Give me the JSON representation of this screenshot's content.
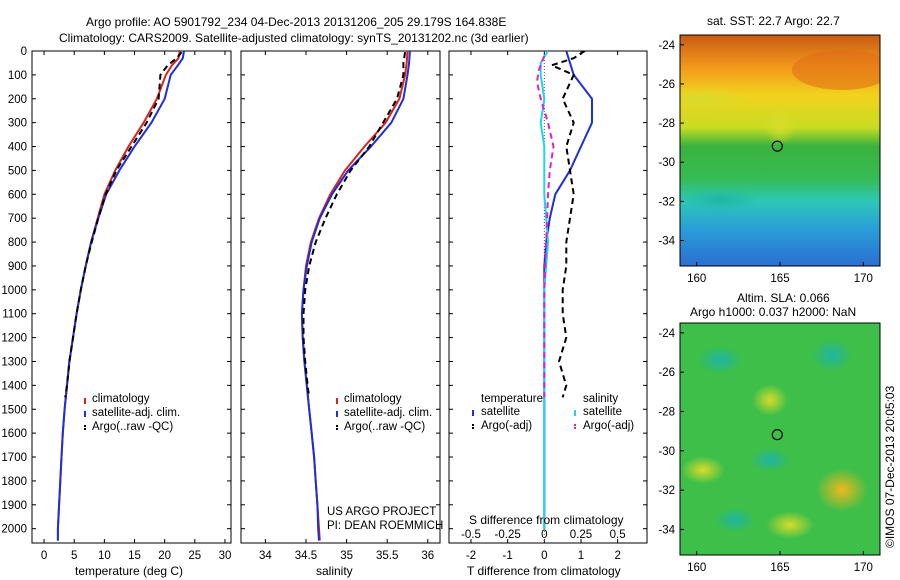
{
  "title_line1": "Argo profile: AO 5901792_234 04-Dec-2013 20131206_205 29.179S 164.838E",
  "title_line2": "Climatology: CARS2009. Satellite-adjusted climatology: synTS_20131202.nc (3d earlier)",
  "colors": {
    "climatology": "#e0201c",
    "satellite": "#1c2fd8",
    "argo": "#000000",
    "salinity_satellite": "#22d4e8",
    "salinity_argo": "#e020d0"
  },
  "chart_data": [
    {
      "type": "line",
      "xlabel": "temperature (deg C)",
      "ylabel": "",
      "xlim": [
        -2,
        31
      ],
      "ylim": [
        2060,
        0
      ],
      "xticks": [
        0,
        5,
        10,
        15,
        20,
        25,
        30
      ],
      "yticks": [
        0,
        100,
        200,
        300,
        400,
        500,
        600,
        700,
        800,
        900,
        1000,
        1100,
        1200,
        1300,
        1400,
        1500,
        1600,
        1700,
        1800,
        1900,
        2000
      ],
      "legend": [
        "climatology",
        "satellite-adj. clim.",
        "Argo(..raw -QC)"
      ],
      "series": [
        {
          "name": "climatology",
          "style": "solid",
          "color": "#e0201c",
          "points": [
            [
              22.5,
              0
            ],
            [
              22.3,
              30
            ],
            [
              21.2,
              60
            ],
            [
              20.2,
              100
            ],
            [
              18.7,
              200
            ],
            [
              16.5,
              300
            ],
            [
              14.0,
              400
            ],
            [
              11.8,
              500
            ],
            [
              10.0,
              600
            ],
            [
              8.9,
              700
            ],
            [
              7.8,
              800
            ],
            [
              6.9,
              900
            ],
            [
              6.1,
              1000
            ],
            [
              5.4,
              1100
            ],
            [
              4.8,
              1200
            ],
            [
              4.2,
              1300
            ],
            [
              3.8,
              1400
            ],
            [
              3.4,
              1500
            ],
            [
              3.1,
              1600
            ],
            [
              2.9,
              1700
            ],
            [
              2.7,
              1800
            ],
            [
              2.5,
              1900
            ],
            [
              2.3,
              2000
            ],
            [
              2.3,
              2050
            ]
          ]
        },
        {
          "name": "satellite-adj. clim.",
          "style": "solid",
          "color": "#1c2fd8",
          "points": [
            [
              23.2,
              0
            ],
            [
              23.0,
              30
            ],
            [
              22.2,
              60
            ],
            [
              21.0,
              100
            ],
            [
              20.0,
              200
            ],
            [
              17.8,
              300
            ],
            [
              15.0,
              400
            ],
            [
              12.5,
              500
            ],
            [
              10.3,
              600
            ],
            [
              9.0,
              700
            ],
            [
              7.8,
              800
            ],
            [
              6.9,
              900
            ],
            [
              6.1,
              1000
            ],
            [
              5.4,
              1100
            ],
            [
              4.8,
              1200
            ],
            [
              4.2,
              1300
            ],
            [
              3.8,
              1400
            ],
            [
              3.4,
              1500
            ],
            [
              3.1,
              1600
            ],
            [
              2.9,
              1700
            ],
            [
              2.7,
              1800
            ],
            [
              2.5,
              1900
            ],
            [
              2.3,
              2000
            ],
            [
              2.3,
              2050
            ]
          ]
        },
        {
          "name": "Argo(..raw -QC)",
          "style": "dashed",
          "color": "#000000",
          "points": [
            [
              22.8,
              5
            ],
            [
              22.0,
              30
            ],
            [
              20.5,
              60
            ],
            [
              19.3,
              100
            ],
            [
              19.0,
              200
            ],
            [
              17.0,
              300
            ],
            [
              14.5,
              400
            ],
            [
              12.0,
              500
            ],
            [
              10.2,
              600
            ],
            [
              9.0,
              700
            ],
            [
              7.9,
              800
            ],
            [
              6.9,
              900
            ],
            [
              6.1,
              1000
            ],
            [
              5.4,
              1100
            ],
            [
              4.8,
              1200
            ],
            [
              4.2,
              1300
            ],
            [
              3.8,
              1400
            ],
            [
              3.5,
              1450
            ]
          ]
        }
      ]
    },
    {
      "type": "line",
      "xlabel": "salinity",
      "ylabel": "",
      "xlim": [
        33.7,
        36.15
      ],
      "ylim": [
        2060,
        0
      ],
      "xticks": [
        34,
        34.5,
        35,
        35.5,
        36
      ],
      "legend": [
        "climatology",
        "satellite-adj. clim.",
        "Argo(..raw -QC)"
      ],
      "series": [
        {
          "name": "climatology",
          "style": "solid",
          "color": "#e0201c",
          "points": [
            [
              35.75,
              0
            ],
            [
              35.74,
              50
            ],
            [
              35.72,
              100
            ],
            [
              35.65,
              200
            ],
            [
              35.48,
              300
            ],
            [
              35.22,
              400
            ],
            [
              34.98,
              500
            ],
            [
              34.8,
              600
            ],
            [
              34.66,
              700
            ],
            [
              34.56,
              800
            ],
            [
              34.5,
              900
            ],
            [
              34.47,
              1000
            ],
            [
              34.45,
              1100
            ],
            [
              34.46,
              1200
            ],
            [
              34.48,
              1300
            ],
            [
              34.51,
              1400
            ],
            [
              34.54,
              1500
            ],
            [
              34.57,
              1600
            ],
            [
              34.6,
              1700
            ],
            [
              34.62,
              1800
            ],
            [
              34.64,
              1900
            ],
            [
              34.66,
              2000
            ],
            [
              34.67,
              2050
            ]
          ]
        },
        {
          "name": "satellite-adj. clim.",
          "style": "solid",
          "color": "#1c2fd8",
          "points": [
            [
              35.78,
              0
            ],
            [
              35.77,
              50
            ],
            [
              35.75,
              100
            ],
            [
              35.7,
              200
            ],
            [
              35.55,
              300
            ],
            [
              35.3,
              400
            ],
            [
              35.02,
              500
            ],
            [
              34.82,
              600
            ],
            [
              34.67,
              700
            ],
            [
              34.57,
              800
            ],
            [
              34.51,
              900
            ],
            [
              34.47,
              1000
            ],
            [
              34.45,
              1100
            ],
            [
              34.46,
              1200
            ],
            [
              34.48,
              1300
            ],
            [
              34.51,
              1400
            ],
            [
              34.54,
              1500
            ],
            [
              34.57,
              1600
            ],
            [
              34.6,
              1700
            ],
            [
              34.62,
              1800
            ],
            [
              34.64,
              1900
            ],
            [
              34.65,
              2000
            ],
            [
              34.66,
              2050
            ]
          ]
        },
        {
          "name": "Argo(..raw -QC)",
          "style": "dashed",
          "color": "#000000",
          "points": [
            [
              35.72,
              5
            ],
            [
              35.7,
              50
            ],
            [
              35.7,
              100
            ],
            [
              35.62,
              200
            ],
            [
              35.45,
              300
            ],
            [
              35.28,
              400
            ],
            [
              35.05,
              500
            ],
            [
              34.88,
              600
            ],
            [
              34.74,
              700
            ],
            [
              34.62,
              800
            ],
            [
              34.54,
              900
            ],
            [
              34.49,
              1000
            ],
            [
              34.47,
              1100
            ],
            [
              34.47,
              1200
            ],
            [
              34.49,
              1300
            ],
            [
              34.52,
              1400
            ],
            [
              34.54,
              1450
            ]
          ]
        }
      ]
    },
    {
      "type": "line",
      "xlabel": "T difference from climatology",
      "x2label": "S difference from climatology",
      "ylabel": "",
      "xlim": [
        -2.6,
        2.8
      ],
      "ylim": [
        2060,
        0
      ],
      "xticks": [
        -2,
        -1,
        0,
        1,
        2
      ],
      "x2ticks": [
        "-0.5",
        "-0.25",
        "0",
        "0.25",
        "0.5"
      ],
      "legend_temperature": [
        "temperature",
        "satellite",
        "Argo(-adj)"
      ],
      "legend_salinity": [
        "salinity",
        "satellite",
        "Argo(-adj)"
      ],
      "series": [
        {
          "name": "satellite",
          "group": "temperature",
          "style": "solid",
          "color": "#1c2fd8",
          "points": [
            [
              0.6,
              0
            ],
            [
              0.7,
              50
            ],
            [
              0.8,
              100
            ],
            [
              1.3,
              200
            ],
            [
              1.3,
              300
            ],
            [
              1.0,
              400
            ],
            [
              0.7,
              500
            ],
            [
              0.3,
              600
            ],
            [
              0.15,
              700
            ],
            [
              0.05,
              800
            ],
            [
              0.0,
              900
            ],
            [
              0.0,
              1000
            ],
            [
              0.0,
              1200
            ],
            [
              0.0,
              1600
            ],
            [
              0.0,
              2000
            ]
          ]
        },
        {
          "name": "Argo(-adj)",
          "group": "temperature",
          "style": "dashed",
          "color": "#000000",
          "points": [
            [
              1.1,
              0
            ],
            [
              0.8,
              30
            ],
            [
              0.2,
              60
            ],
            [
              0.8,
              100
            ],
            [
              0.5,
              200
            ],
            [
              0.8,
              300
            ],
            [
              0.6,
              400
            ],
            [
              0.7,
              500
            ],
            [
              0.8,
              600
            ],
            [
              0.7,
              700
            ],
            [
              0.6,
              800
            ],
            [
              0.6,
              900
            ],
            [
              0.5,
              1000
            ],
            [
              0.5,
              1100
            ],
            [
              0.6,
              1200
            ],
            [
              0.4,
              1300
            ],
            [
              0.6,
              1400
            ],
            [
              0.5,
              1450
            ]
          ]
        },
        {
          "name": "satellite",
          "group": "salinity",
          "style": "solid",
          "color": "#22d4e8",
          "points": [
            [
              0.1,
              0
            ],
            [
              -0.1,
              50
            ],
            [
              -0.1,
              100
            ],
            [
              0.0,
              200
            ],
            [
              -0.1,
              300
            ],
            [
              0.0,
              400
            ],
            [
              0.0,
              600
            ],
            [
              0.1,
              800
            ],
            [
              0.0,
              1000
            ],
            [
              0.0,
              1400
            ],
            [
              0.0,
              2000
            ]
          ]
        },
        {
          "name": "Argo(-adj)",
          "group": "salinity",
          "style": "dashed",
          "color": "#e020d0",
          "points": [
            [
              0.0,
              20
            ],
            [
              -0.15,
              80
            ],
            [
              -0.2,
              130
            ],
            [
              -0.1,
              200
            ],
            [
              0.1,
              300
            ],
            [
              0.25,
              400
            ],
            [
              0.15,
              500
            ],
            [
              0.1,
              600
            ],
            [
              0.05,
              800
            ],
            [
              0.0,
              1000
            ],
            [
              0.0,
              1450
            ]
          ]
        }
      ],
      "annotations": [
        "US ARGO PROJECT",
        "PI: DEAN ROEMMICH"
      ]
    },
    {
      "type": "heatmap",
      "title": "sat. SST: 22.7  Argo: 22.7",
      "xlim": [
        159,
        171
      ],
      "ylim": [
        -35.3,
        -23.5
      ],
      "xticks": [
        160,
        165,
        170
      ],
      "yticks": [
        -24,
        -26,
        -28,
        -30,
        -32,
        -34
      ],
      "marker": [
        164.838,
        -29.179
      ]
    },
    {
      "type": "heatmap",
      "title_line1": "Altim. SLA: 0.066",
      "title_line2": "Argo h1000: 0.037  h2000: NaN",
      "xlim": [
        159,
        171
      ],
      "ylim": [
        -35.3,
        -23.5
      ],
      "xticks": [
        160,
        165,
        170
      ],
      "yticks": [
        -24,
        -26,
        -28,
        -30,
        -32,
        -34
      ],
      "marker": [
        164.838,
        -29.179
      ]
    }
  ],
  "footer_stamp": "©IMOS 07-Dec-2013 20:05:03"
}
